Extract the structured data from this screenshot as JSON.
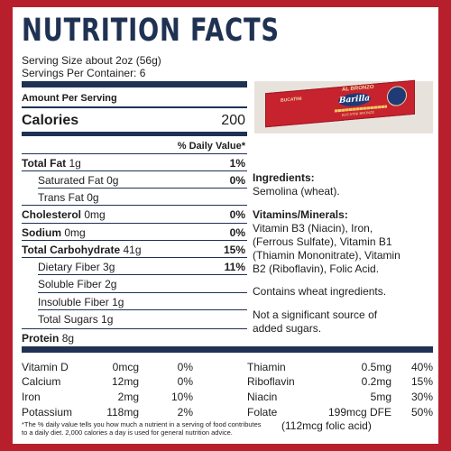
{
  "title": "NUTRITION FACTS",
  "serving_size": "Serving Size about 2oz (56g)",
  "servings_per_container": "Servings Per Container: 6",
  "amount_per_serving": "Amount Per Serving",
  "calories": {
    "label": "Calories",
    "value": "200"
  },
  "daily_value_header": "% Daily Value*",
  "nutrients": {
    "total_fat": {
      "label": "Total Fat",
      "amount": "1g",
      "dv": "1%"
    },
    "saturated_fat": {
      "label": "Saturated Fat",
      "amount": "0g",
      "dv": "0%"
    },
    "trans_fat": {
      "label": "Trans Fat",
      "amount": "0g"
    },
    "cholesterol": {
      "label": "Cholesterol",
      "amount": "0mg",
      "dv": "0%"
    },
    "sodium": {
      "label": "Sodium",
      "amount": "0mg",
      "dv": "0%"
    },
    "total_carbohydrate": {
      "label": "Total Carbohydrate",
      "amount": "41g",
      "dv": "15%"
    },
    "dietary_fiber": {
      "label": "Dietary Fiber",
      "amount": "3g",
      "dv": "11%"
    },
    "soluble_fiber": {
      "label": "Soluble Fiber",
      "amount": "2g"
    },
    "insoluble_fiber": {
      "label": "Insoluble Fiber",
      "amount": "1g"
    },
    "total_sugars": {
      "label": "Total Sugars",
      "amount": "1g"
    },
    "protein": {
      "label": "Protein",
      "amount": "8g"
    }
  },
  "product_image": {
    "brand": "Barilla",
    "name": "BUCATINI",
    "line": "AL BRONZO",
    "subtitle": "BUCATINI BRONZE"
  },
  "ingredients": {
    "heading": "Ingredients:",
    "text": "Semolina (wheat)."
  },
  "vitamins_minerals": {
    "heading": "Vitamins/Minerals:",
    "lines": [
      "Vitamin B3 (Niacin), Iron,",
      "(Ferrous Sulfate), Vitamin B1",
      "(Thiamin Mononitrate), Vitamin",
      "B2 (Riboflavin), Folic Acid."
    ]
  },
  "allergen": "Contains wheat ingredients.",
  "sugar_note": [
    "Not a significant source of",
    "added sugars."
  ],
  "micros_left": [
    {
      "name": "Vitamin D",
      "amount": "0mcg",
      "dv": "0%"
    },
    {
      "name": "Calcium",
      "amount": "12mg",
      "dv": "0%"
    },
    {
      "name": "Iron",
      "amount": "2mg",
      "dv": "10%"
    },
    {
      "name": "Potassium",
      "amount": "118mg",
      "dv": "2%"
    }
  ],
  "micros_right": [
    {
      "name": "Thiamin",
      "amount": "0.5mg",
      "dv": "40%"
    },
    {
      "name": "Riboflavin",
      "amount": "0.2mg",
      "dv": "15%"
    },
    {
      "name": "Niacin",
      "amount": "5mg",
      "dv": "30%"
    },
    {
      "name": "Folate",
      "amount": "199mcg DFE",
      "dv": "50%"
    }
  ],
  "folic_acid_note": "(112mcg folic acid)",
  "footnote": [
    "*The % daily value tells you how much a nutrient in a serving of food contributes",
    "to a daily diet. 2,000 calories a day is used for general nutrition advice."
  ]
}
